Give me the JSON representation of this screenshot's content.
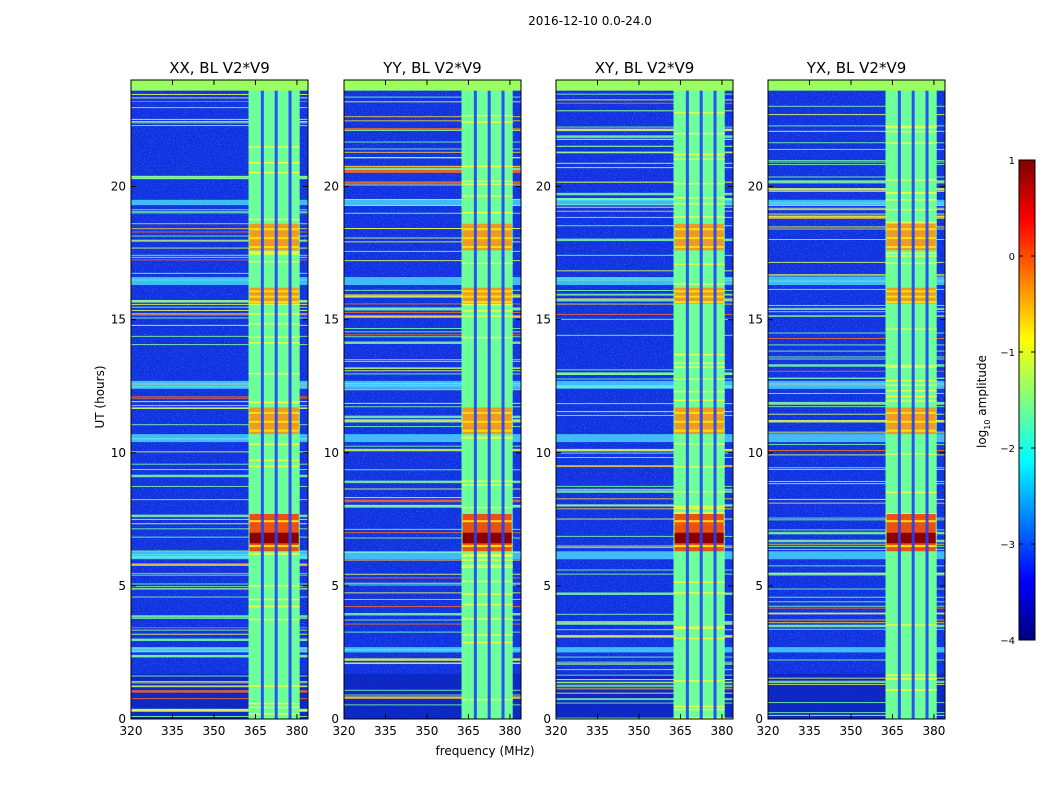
{
  "figure": {
    "suptitle": "2016-12-10 0.0-24.0",
    "ylabel": "UT (hours)",
    "xlabel": "frequency (MHz)"
  },
  "chart_data": {
    "type": "heatmap",
    "panels": [
      {
        "title": "XX, BL V2*V9",
        "pol": "XX"
      },
      {
        "title": "YY, BL V2*V9",
        "pol": "YY"
      },
      {
        "title": "XY, BL V2*V9",
        "pol": "XY"
      },
      {
        "title": "YX, BL V2*V9",
        "pol": "YX"
      }
    ],
    "xlim": [
      320,
      384
    ],
    "ylim": [
      0,
      24
    ],
    "xticks": [
      320,
      335,
      350,
      365,
      380
    ],
    "xtick_labels": [
      "320",
      "335",
      "350",
      "365",
      "380"
    ],
    "yticks": [
      0,
      5,
      10,
      15,
      20
    ],
    "ytick_labels": [
      "0",
      "5",
      "10",
      "15",
      "20"
    ],
    "colorbar": {
      "label": "log10 amplitude",
      "label_text": "log",
      "label_sub": "10",
      "label_rest": " amplitude",
      "min": -4,
      "max": 1,
      "ticks": [
        -4,
        -3,
        -2,
        -1,
        0,
        1
      ],
      "tick_labels": [
        "−4",
        "−3",
        "−2",
        "−1",
        "0",
        "1"
      ],
      "colormap": "jet",
      "colors": [
        "#00007f",
        "#0000ff",
        "#007fff",
        "#00ffff",
        "#7fff7f",
        "#ffff00",
        "#ff7f00",
        "#ff0000",
        "#7f0000"
      ]
    },
    "features": {
      "bright_band_mhz": [
        362.5,
        381
      ],
      "band_dropouts_mhz": [
        367.5,
        372.5,
        377.5
      ],
      "rfi_burst_hours": [
        [
          6.3,
          7.7
        ],
        [
          10.7,
          11.7
        ],
        [
          15.6,
          16.2
        ],
        [
          17.6,
          18.6
        ]
      ],
      "top_flag_hours": [
        23.6,
        24
      ]
    }
  }
}
